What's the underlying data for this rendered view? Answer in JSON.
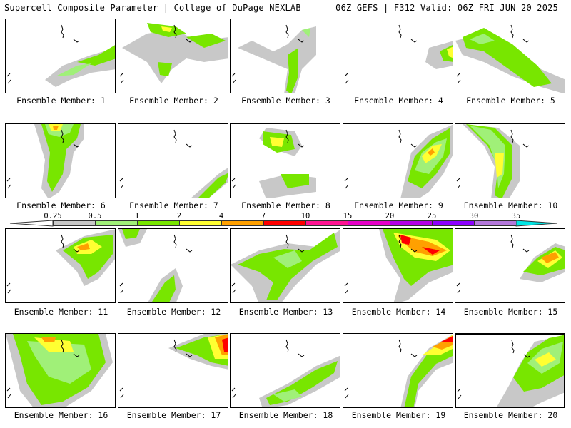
{
  "header": {
    "left_title": "Supercell Composite Parameter | College of DuPage NEXLAB",
    "right_title": "06Z GEFS | F312 Valid: 06Z FRI JUN 20 2025"
  },
  "colorbar": {
    "ticks": [
      "0.25",
      "0.5",
      "1",
      "2",
      "4",
      "7",
      "10",
      "15",
      "20",
      "25",
      "30",
      "35"
    ],
    "colors": [
      "#c8c8c8",
      "#a0f078",
      "#78e600",
      "#ffff32",
      "#ffa000",
      "#ff0000",
      "#ff1493",
      "#e600c8",
      "#b400e6",
      "#8c00ff",
      "#b478dc",
      "#00e6e6"
    ]
  },
  "panels": [
    {
      "caption": "Ensemble Member: 1"
    },
    {
      "caption": "Ensemble Member: 2"
    },
    {
      "caption": "Ensemble Member: 3"
    },
    {
      "caption": "Ensemble Member: 4"
    },
    {
      "caption": "Ensemble Member: 5"
    },
    {
      "caption": "Ensemble Member: 6"
    },
    {
      "caption": "Ensemble Member: 7"
    },
    {
      "caption": "Ensemble Member: 8"
    },
    {
      "caption": "Ensemble Member: 9"
    },
    {
      "caption": "Ensemble Member: 10"
    },
    {
      "caption": "Ensemble Member: 11"
    },
    {
      "caption": "Ensemble Member: 12"
    },
    {
      "caption": "Ensemble Member: 13"
    },
    {
      "caption": "Ensemble Member: 14"
    },
    {
      "caption": "Ensemble Member: 15"
    },
    {
      "caption": "Ensemble Member: 16"
    },
    {
      "caption": "Ensemble Member: 17"
    },
    {
      "caption": "Ensemble Member: 18"
    },
    {
      "caption": "Ensemble Member: 19"
    },
    {
      "caption": "Ensemble Member: 20"
    }
  ]
}
